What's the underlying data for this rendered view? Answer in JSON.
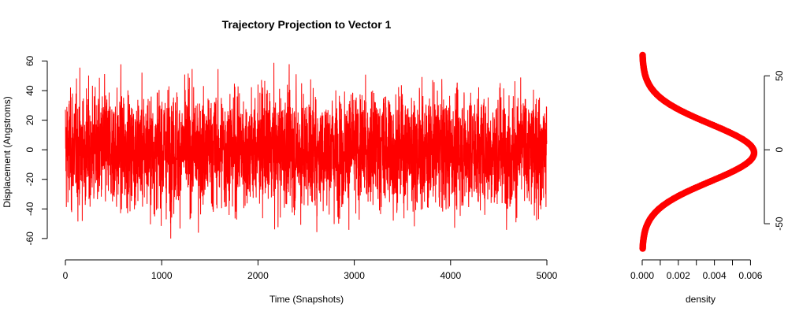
{
  "chart_data": [
    {
      "type": "line",
      "title": "Trajectory Projection to Vector 1",
      "xlabel": "Time (Snapshots)",
      "ylabel": "Displacement (Angstroms)",
      "xlim": [
        0,
        5000
      ],
      "ylim": [
        -67,
        64
      ],
      "xticks": [
        0,
        1000,
        2000,
        3000,
        4000,
        5000
      ],
      "yticks": [
        -60,
        -40,
        -20,
        0,
        20,
        40,
        60
      ],
      "color": "#ff0000",
      "series": [
        {
          "values_summary": {
            "n_points": 5000,
            "mean": 0,
            "sd": 19,
            "min": -67,
            "max": 64
          }
        }
      ],
      "grid": false
    },
    {
      "type": "line",
      "title": "",
      "xlabel": "density",
      "ylabel": "",
      "xlim": [
        0,
        0.0062
      ],
      "ylim": [
        -67,
        64
      ],
      "xticks": [
        "0.000",
        "0.002",
        "0.004",
        "0.006"
      ],
      "xtick_values": [
        0,
        0.002,
        0.004,
        0.006
      ],
      "yticks": [
        -50,
        0,
        50
      ],
      "yaxis_side": "right",
      "color": "#ff0000",
      "marker": "circle",
      "series": [
        {
          "distribution": "normal",
          "mean": -2,
          "sd": 19.5,
          "peak_density": 0.0062
        }
      ],
      "grid": false
    }
  ]
}
